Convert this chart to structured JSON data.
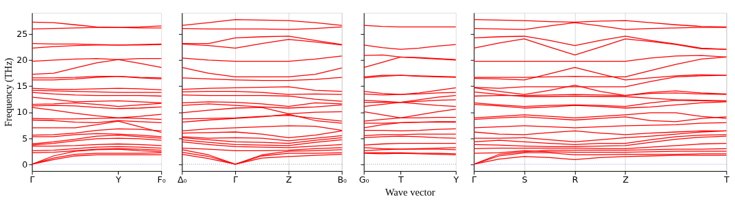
{
  "chart_data": [
    {
      "type": "line",
      "ylabel": "Frequency (THz)",
      "categories": [
        "Γ",
        null,
        null,
        null,
        "Y",
        null,
        "F₀"
      ],
      "ylim": [
        -1.3,
        29.1
      ],
      "yticks": [
        0,
        5,
        10,
        15,
        20,
        25
      ],
      "line_style": "solid",
      "ref_lines": [
        {
          "axis": "y",
          "value": 0,
          "color": "#6666ff",
          "line_style": "dotted"
        }
      ],
      "series": [
        {
          "color": "#ff0000",
          "values": [
            27.3,
            27.2,
            26.8,
            26.4,
            26.3,
            26.4,
            26.6
          ]
        },
        {
          "color": "#ff0000",
          "values": [
            26.0,
            26.1,
            26.2,
            26.3,
            26.3,
            26.2,
            26.2
          ]
        },
        {
          "color": "#ff0000",
          "values": [
            23.2,
            23.1,
            23.1,
            23.0,
            22.9,
            23.0,
            23.1
          ]
        },
        {
          "color": "#ff0000",
          "values": [
            22.3,
            22.6,
            22.8,
            22.9,
            22.9,
            22.9,
            23.0
          ]
        },
        {
          "color": "#ff0000",
          "values": [
            19.8,
            20.0,
            20.2,
            20.3,
            20.1,
            20.3,
            20.3
          ]
        },
        {
          "color": "#ff0000",
          "values": [
            17.3,
            17.5,
            18.5,
            19.5,
            20.1,
            19.4,
            18.6
          ]
        },
        {
          "color": "#ff0000",
          "values": [
            16.6,
            16.6,
            16.7,
            16.9,
            16.9,
            16.7,
            16.6
          ]
        },
        {
          "color": "#ff0000",
          "values": [
            16.2,
            16.2,
            16.4,
            16.7,
            16.9,
            16.6,
            16.4
          ]
        },
        {
          "color": "#ff0000",
          "values": [
            14.6,
            14.4,
            14.4,
            14.5,
            14.6,
            14.5,
            14.3
          ]
        },
        {
          "color": "#ff0000",
          "values": [
            14.2,
            14.1,
            14.0,
            13.9,
            13.8,
            13.8,
            13.8
          ]
        },
        {
          "color": "#ff0000",
          "values": [
            13.8,
            13.5,
            13.3,
            13.2,
            13.2,
            13.2,
            13.1
          ]
        },
        {
          "color": "#ff0000",
          "values": [
            12.9,
            12.5,
            12.0,
            12.1,
            12.2,
            12.0,
            11.8
          ]
        },
        {
          "color": "#ff0000",
          "values": [
            11.5,
            11.6,
            11.8,
            11.5,
            11.1,
            11.4,
            11.7
          ]
        },
        {
          "color": "#ff0000",
          "values": [
            11.2,
            11.3,
            11.2,
            10.9,
            10.7,
            10.8,
            11.0
          ]
        },
        {
          "color": "#ff0000",
          "values": [
            10.9,
            10.4,
            9.8,
            9.3,
            8.9,
            9.2,
            9.6
          ]
        },
        {
          "color": "#ff0000",
          "values": [
            8.8,
            8.7,
            8.7,
            8.8,
            8.9,
            8.8,
            8.6
          ]
        },
        {
          "color": "#ff0000",
          "values": [
            8.5,
            8.4,
            8.1,
            8.0,
            8.4,
            8.2,
            8.0
          ]
        },
        {
          "color": "#ff0000",
          "values": [
            7.0,
            7.0,
            7.0,
            7.6,
            8.3,
            7.2,
            6.1
          ]
        },
        {
          "color": "#ff0000",
          "values": [
            5.6,
            5.7,
            6.0,
            6.5,
            6.8,
            6.7,
            6.4
          ]
        },
        {
          "color": "#ff0000",
          "values": [
            5.3,
            5.3,
            5.7,
            5.9,
            5.8,
            5.6,
            5.3
          ]
        },
        {
          "color": "#ff0000",
          "values": [
            3.9,
            4.3,
            4.8,
            5.4,
            5.6,
            5.3,
            5.0
          ]
        },
        {
          "color": "#ff0000",
          "values": [
            3.7,
            4.0,
            4.5,
            4.9,
            5.0,
            4.9,
            4.6
          ]
        },
        {
          "color": "#ff0000",
          "values": [
            3.5,
            3.5,
            3.6,
            3.8,
            3.9,
            3.8,
            3.6
          ]
        },
        {
          "color": "#ff0000",
          "values": [
            2.6,
            2.7,
            3.0,
            3.3,
            3.4,
            3.3,
            3.1
          ]
        },
        {
          "color": "#ff0000",
          "values": [
            2.2,
            2.3,
            2.6,
            2.9,
            3.0,
            2.9,
            2.7
          ]
        },
        {
          "color": "#ff0000",
          "values": [
            0,
            1.6,
            2.5,
            2.8,
            2.9,
            2.6,
            2.4
          ]
        },
        {
          "color": "#ff0000",
          "values": [
            0,
            1.2,
            1.9,
            2.1,
            2.1,
            2.1,
            2.2
          ]
        },
        {
          "color": "#ff0000",
          "values": [
            0,
            0.9,
            1.6,
            1.8,
            1.8,
            1.8,
            1.8
          ]
        }
      ]
    },
    {
      "type": "line",
      "categories": [
        "Δ₀",
        null,
        "Γ",
        null,
        "Z",
        null,
        "B₀"
      ],
      "ylim": [
        -1.3,
        29.1
      ],
      "yticks": [
        0,
        5,
        10,
        15,
        20,
        25
      ],
      "tick_labels": "x",
      "grid": "x",
      "line_style": "solid",
      "ref_lines": [
        {
          "axis": "y",
          "value": 0,
          "color": "#6666ff",
          "line_style": "dotted"
        }
      ],
      "series": [
        {
          "color": "#ff0000",
          "values": [
            26.7,
            27.2,
            27.8,
            27.7,
            27.6,
            27.2,
            26.7
          ]
        },
        {
          "color": "#ff0000",
          "values": [
            26.1,
            26.0,
            26.0,
            26.0,
            25.9,
            26.1,
            26.4
          ]
        },
        {
          "color": "#ff0000",
          "values": [
            23.2,
            23.2,
            24.3,
            24.5,
            24.6,
            23.8,
            23.0
          ]
        },
        {
          "color": "#ff0000",
          "values": [
            23.1,
            22.8,
            22.3,
            23.2,
            24.0,
            23.5,
            22.9
          ]
        },
        {
          "color": "#ff0000",
          "values": [
            20.4,
            20.0,
            19.8,
            19.8,
            19.8,
            20.2,
            20.8
          ]
        },
        {
          "color": "#ff0000",
          "values": [
            18.6,
            17.5,
            16.8,
            16.8,
            16.8,
            17.3,
            18.5
          ]
        },
        {
          "color": "#ff0000",
          "values": [
            16.6,
            16.4,
            16.2,
            16.1,
            16.1,
            16.3,
            16.7
          ]
        },
        {
          "color": "#ff0000",
          "values": [
            14.4,
            14.6,
            14.7,
            14.8,
            14.9,
            14.2,
            14.0
          ]
        },
        {
          "color": "#ff0000",
          "values": [
            13.9,
            14.0,
            14.0,
            13.8,
            13.4,
            13.5,
            13.4
          ]
        },
        {
          "color": "#ff0000",
          "values": [
            13.3,
            13.2,
            13.2,
            13.2,
            13.1,
            12.5,
            12.1
          ]
        },
        {
          "color": "#ff0000",
          "values": [
            11.8,
            12.0,
            11.9,
            11.6,
            11.1,
            11.8,
            11.6
          ]
        },
        {
          "color": "#ff0000",
          "values": [
            11.3,
            11.6,
            11.3,
            11.0,
            10.8,
            11.0,
            11.4
          ]
        },
        {
          "color": "#ff0000",
          "values": [
            9.9,
            10.4,
            10.8,
            10.9,
            9.7,
            10.0,
            10.1
          ]
        },
        {
          "color": "#ff0000",
          "values": [
            8.7,
            8.8,
            8.9,
            9.2,
            9.4,
            8.8,
            8.3
          ]
        },
        {
          "color": "#ff0000",
          "values": [
            8.1,
            8.5,
            8.8,
            9.1,
            9.6,
            8.4,
            7.9
          ]
        },
        {
          "color": "#ff0000",
          "values": [
            6.4,
            6.8,
            7.0,
            7.2,
            7.4,
            7.3,
            6.5
          ]
        },
        {
          "color": "#ff0000",
          "values": [
            6.0,
            6.1,
            6.2,
            5.8,
            5.1,
            5.6,
            6.4
          ]
        },
        {
          "color": "#ff0000",
          "values": [
            5.3,
            5.0,
            5.1,
            5.0,
            4.5,
            5.0,
            5.5
          ]
        },
        {
          "color": "#ff0000",
          "values": [
            5.1,
            4.7,
            4.3,
            4.2,
            4.0,
            4.6,
            5.1
          ]
        },
        {
          "color": "#ff0000",
          "values": [
            4.7,
            4.2,
            3.8,
            3.7,
            3.6,
            4.2,
            4.7
          ]
        },
        {
          "color": "#ff0000",
          "values": [
            4.3,
            3.8,
            3.4,
            3.3,
            3.2,
            3.5,
            3.8
          ]
        },
        {
          "color": "#ff0000",
          "values": [
            3.1,
            2.9,
            2.6,
            2.6,
            2.7,
            3.0,
            3.2
          ]
        },
        {
          "color": "#ff0000",
          "values": [
            2.8,
            1.8,
            0,
            1.8,
            2.5,
            2.6,
            2.8
          ]
        },
        {
          "color": "#ff0000",
          "values": [
            2.3,
            1.5,
            0,
            1.6,
            2.1,
            2.1,
            2.2
          ]
        },
        {
          "color": "#ff0000",
          "values": [
            1.9,
            1.1,
            0,
            1.2,
            1.5,
            1.7,
            1.9
          ]
        }
      ]
    },
    {
      "type": "line",
      "xlabel": "Wave vector",
      "categories": [
        "G₀",
        null,
        "T",
        null,
        null,
        "Y"
      ],
      "ylim": [
        -1.3,
        29.1
      ],
      "yticks": [
        0,
        5,
        10,
        15,
        20,
        25
      ],
      "tick_labels": "x",
      "line_style": "solid",
      "ref_lines": [
        {
          "axis": "y",
          "value": 0,
          "color": "#6666ff",
          "line_style": "dotted"
        }
      ],
      "series": [
        {
          "color": "#ff0000",
          "values": [
            26.7,
            26.5,
            26.4,
            26.4,
            26.4,
            26.4
          ]
        },
        {
          "color": "#ff0000",
          "values": [
            22.9,
            22.4,
            22.1,
            22.3,
            22.7,
            23.0
          ]
        },
        {
          "color": "#ff0000",
          "values": [
            20.9,
            21.0,
            20.6,
            20.5,
            20.3,
            20.1
          ]
        },
        {
          "color": "#ff0000",
          "values": [
            18.6,
            19.6,
            20.6,
            20.4,
            20.2,
            20.0
          ]
        },
        {
          "color": "#ff0000",
          "values": [
            16.8,
            17.1,
            17.1,
            17.0,
            16.9,
            16.8
          ]
        },
        {
          "color": "#ff0000",
          "values": [
            16.6,
            16.9,
            17.1,
            16.9,
            16.8,
            16.7
          ]
        },
        {
          "color": "#ff0000",
          "values": [
            14.0,
            13.6,
            13.4,
            13.7,
            14.2,
            14.7
          ]
        },
        {
          "color": "#ff0000",
          "values": [
            13.5,
            13.3,
            13.4,
            13.5,
            13.7,
            13.8
          ]
        },
        {
          "color": "#ff0000",
          "values": [
            12.3,
            12.1,
            11.9,
            12.4,
            12.9,
            13.2
          ]
        },
        {
          "color": "#ff0000",
          "values": [
            11.9,
            11.9,
            11.9,
            12.1,
            12.3,
            12.4
          ]
        },
        {
          "color": "#ff0000",
          "values": [
            11.1,
            11.5,
            11.9,
            11.6,
            11.3,
            11.1
          ]
        },
        {
          "color": "#ff0000",
          "values": [
            10.1,
            9.5,
            8.9,
            9.5,
            10.1,
            10.6
          ]
        },
        {
          "color": "#ff0000",
          "values": [
            8.3,
            8.6,
            8.9,
            8.9,
            9.0,
            9.0
          ]
        },
        {
          "color": "#ff0000",
          "values": [
            7.9,
            7.9,
            8.0,
            8.1,
            8.1,
            8.1
          ]
        },
        {
          "color": "#ff0000",
          "values": [
            7.0,
            7.6,
            8.0,
            8.1,
            8.2,
            8.2
          ]
        },
        {
          "color": "#ff0000",
          "values": [
            6.5,
            6.5,
            6.4,
            6.5,
            6.7,
            6.8
          ]
        },
        {
          "color": "#ff0000",
          "values": [
            5.5,
            5.7,
            5.7,
            5.8,
            5.8,
            5.8
          ]
        },
        {
          "color": "#ff0000",
          "values": [
            5.1,
            5.3,
            5.4,
            5.3,
            5.1,
            5.0
          ]
        },
        {
          "color": "#ff0000",
          "values": [
            3.7,
            3.9,
            4.0,
            4.0,
            4.0,
            4.0
          ]
        },
        {
          "color": "#ff0000",
          "values": [
            3.2,
            3.0,
            2.9,
            3.0,
            3.1,
            3.2
          ]
        },
        {
          "color": "#ff0000",
          "values": [
            2.6,
            2.8,
            2.9,
            2.9,
            2.9,
            2.8
          ]
        },
        {
          "color": "#ff0000",
          "values": [
            2.2,
            2.2,
            2.2,
            2.1,
            2.1,
            2.0
          ]
        },
        {
          "color": "#ff0000",
          "values": [
            2.1,
            2.0,
            2.1,
            2.0,
            1.9,
            1.8
          ]
        }
      ]
    },
    {
      "type": "line",
      "categories": [
        "Γ",
        null,
        "S",
        null,
        "R",
        null,
        "Z",
        null,
        null,
        null,
        "T"
      ],
      "ylim": [
        -1.3,
        29.1
      ],
      "yticks": [
        0,
        5,
        10,
        15,
        20,
        25
      ],
      "tick_labels": "x",
      "grid": "x",
      "line_style": "solid",
      "ref_lines": [
        {
          "axis": "y",
          "value": 0,
          "color": "#6666ff",
          "line_style": "dotted"
        }
      ],
      "series": [
        {
          "color": "#ff0000",
          "values": [
            27.8,
            27.7,
            27.6,
            27.4,
            27.3,
            27.5,
            27.6,
            27.2,
            26.8,
            26.5,
            26.4
          ]
        },
        {
          "color": "#ff0000",
          "values": [
            26.1,
            26.0,
            25.9,
            26.6,
            27.2,
            26.6,
            25.9,
            26.1,
            26.2,
            26.3,
            26.3
          ]
        },
        {
          "color": "#ff0000",
          "values": [
            24.3,
            24.5,
            24.6,
            23.8,
            22.8,
            23.8,
            24.6,
            23.8,
            23.1,
            22.3,
            22.1
          ]
        },
        {
          "color": "#ff0000",
          "values": [
            22.3,
            23.3,
            24.1,
            22.5,
            21.0,
            22.5,
            24.1,
            23.6,
            23.0,
            22.2,
            22.1
          ]
        },
        {
          "color": "#ff0000",
          "values": [
            19.8,
            19.8,
            19.8,
            19.8,
            19.8,
            19.8,
            19.8,
            20.4,
            20.8,
            20.9,
            20.6
          ]
        },
        {
          "color": "#ff0000",
          "values": [
            16.7,
            16.7,
            16.7,
            16.8,
            16.9,
            16.8,
            16.8,
            18.0,
            19.2,
            20.2,
            20.6
          ]
        },
        {
          "color": "#ff0000",
          "values": [
            16.5,
            16.4,
            16.2,
            17.4,
            18.6,
            17.4,
            16.2,
            16.6,
            17.0,
            17.2,
            17.1
          ]
        },
        {
          "color": "#ff0000",
          "values": [
            14.8,
            14.6,
            14.9,
            14.9,
            14.9,
            14.9,
            14.9,
            15.9,
            16.8,
            17.0,
            17.1
          ]
        },
        {
          "color": "#ff0000",
          "values": [
            14.7,
            14.0,
            13.4,
            14.2,
            15.2,
            14.0,
            13.2,
            13.6,
            13.7,
            13.5,
            13.4
          ]
        },
        {
          "color": "#ff0000",
          "values": [
            13.9,
            13.4,
            13.0,
            13.0,
            13.1,
            13.0,
            13.0,
            12.7,
            12.4,
            12.3,
            12.2
          ]
        },
        {
          "color": "#ff0000",
          "values": [
            13.1,
            13.2,
            13.2,
            13.3,
            13.4,
            13.3,
            13.2,
            13.8,
            14.1,
            13.7,
            13.5
          ]
        },
        {
          "color": "#ff0000",
          "values": [
            11.8,
            11.4,
            11.1,
            11.3,
            11.4,
            11.3,
            11.1,
            11.8,
            12.3,
            12.2,
            12.1
          ]
        },
        {
          "color": "#ff0000",
          "values": [
            11.5,
            11.2,
            10.8,
            11.0,
            11.3,
            11.1,
            10.8,
            11.0,
            11.4,
            11.8,
            12.0
          ]
        },
        {
          "color": "#ff0000",
          "values": [
            8.9,
            9.2,
            9.5,
            9.2,
            8.9,
            9.2,
            9.5,
            9.9,
            9.9,
            9.2,
            8.8
          ]
        },
        {
          "color": "#ff0000",
          "values": [
            8.6,
            8.9,
            9.1,
            8.8,
            8.5,
            8.8,
            9.1,
            8.4,
            8.2,
            8.8,
            9.1
          ]
        },
        {
          "color": "#ff0000",
          "values": [
            7.0,
            7.2,
            7.4,
            7.2,
            7.0,
            7.2,
            7.4,
            7.5,
            7.6,
            7.9,
            8.0
          ]
        },
        {
          "color": "#ff0000",
          "values": [
            6.2,
            5.8,
            5.7,
            6.1,
            6.4,
            6.0,
            5.7,
            6.0,
            6.2,
            6.4,
            6.4
          ]
        },
        {
          "color": "#ff0000",
          "values": [
            5.0,
            5.0,
            5.1,
            4.7,
            4.3,
            4.7,
            5.1,
            5.4,
            5.8,
            6.2,
            6.4
          ]
        },
        {
          "color": "#ff0000",
          "values": [
            4.3,
            4.6,
            4.3,
            4.0,
            3.8,
            4.0,
            4.0,
            4.7,
            5.3,
            5.6,
            5.7
          ]
        },
        {
          "color": "#ff0000",
          "values": [
            3.8,
            3.7,
            3.5,
            3.4,
            3.4,
            3.5,
            3.6,
            4.2,
            4.8,
            5.2,
            5.4
          ]
        },
        {
          "color": "#ff0000",
          "values": [
            3.0,
            3.1,
            3.1,
            3.1,
            3.1,
            3.0,
            3.0,
            3.3,
            3.6,
            3.9,
            4.0
          ]
        },
        {
          "color": "#ff0000",
          "values": [
            2.1,
            2.2,
            2.6,
            2.4,
            2.3,
            2.3,
            2.3,
            2.4,
            2.5,
            2.5,
            2.5
          ]
        },
        {
          "color": "#ff0000",
          "values": [
            0,
            1.6,
            2.2,
            2.2,
            1.8,
            1.8,
            1.9,
            1.9,
            1.9,
            2.0,
            2.0
          ]
        },
        {
          "color": "#ff0000",
          "values": [
            0,
            1.9,
            2.4,
            2.7,
            2.7,
            2.7,
            2.7,
            2.8,
            2.9,
            2.9,
            3.0
          ]
        },
        {
          "color": "#ff0000",
          "values": [
            0,
            1.0,
            1.5,
            1.3,
            0.9,
            1.3,
            1.5,
            1.6,
            1.7,
            1.7,
            1.7
          ]
        }
      ]
    }
  ]
}
